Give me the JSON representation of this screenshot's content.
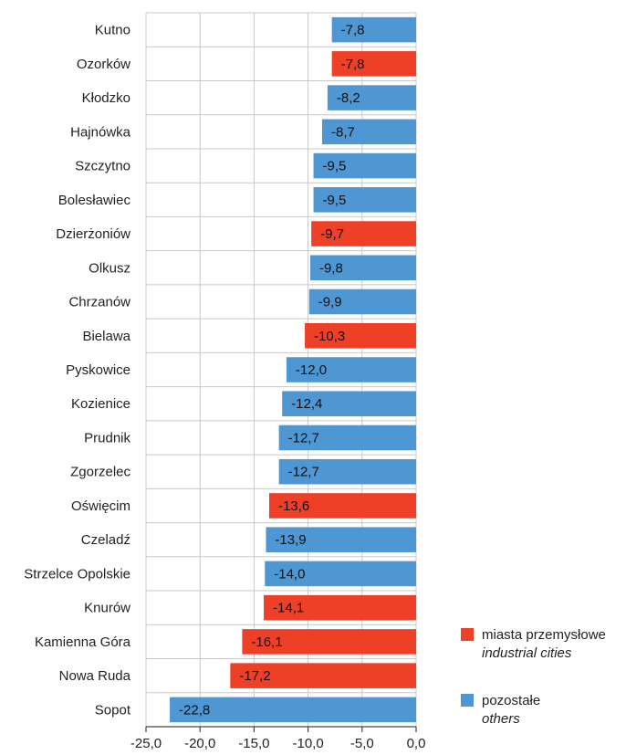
{
  "colors": {
    "industrial": "#ee4026",
    "other": "#4f97d3",
    "grid": "#c8c8c8",
    "axis": "#444444",
    "text": "#222222"
  },
  "legend": {
    "industrial": {
      "label_pl": "miasta przemysłowe",
      "label_en": "industrial cities"
    },
    "other": {
      "label_pl": "pozostałe",
      "label_en": "others"
    }
  },
  "chart_data": {
    "type": "bar",
    "orientation": "horizontal",
    "title": "",
    "xlabel": "",
    "ylabel": "",
    "xlim": [
      -25,
      0
    ],
    "x_ticks": [
      "-25,0",
      "-20,0",
      "-15,0",
      "-10,0",
      "-5,0",
      "0,0"
    ],
    "x_tick_values": [
      -25,
      -20,
      -15,
      -10,
      -5,
      0
    ],
    "grid": true,
    "legend_position": "bottom-right",
    "categories": [
      "Kutno",
      "Ozorków",
      "Kłodzko",
      "Hajnówka",
      "Szczytno",
      "Bolesławiec",
      "Dzierżoniów",
      "Olkusz",
      "Chrzanów",
      "Bielawa",
      "Pyskowice",
      "Kozienice",
      "Prudnik",
      "Zgorzelec",
      "Oświęcim",
      "Czeladź",
      "Strzelce Opolskie",
      "Knurów",
      "Kamienna Góra",
      "Nowa Ruda",
      "Sopot"
    ],
    "values": [
      -7.8,
      -7.8,
      -8.2,
      -8.7,
      -9.5,
      -9.5,
      -9.7,
      -9.8,
      -9.9,
      -10.3,
      -12.0,
      -12.4,
      -12.7,
      -12.7,
      -13.6,
      -13.9,
      -14.0,
      -14.1,
      -16.1,
      -17.2,
      -22.8
    ],
    "value_labels": [
      "-7,8",
      "-7,8",
      "-8,2",
      "-8,7",
      "-9,5",
      "-9,5",
      "-9,7",
      "-9,8",
      "-9,9",
      "-10,3",
      "-12,0",
      "-12,4",
      "-12,7",
      "-12,7",
      "-13,6",
      "-13,9",
      "-14,0",
      "-14,1",
      "-16,1",
      "-17,2",
      "-22,8"
    ],
    "groups": [
      "other",
      "industrial",
      "other",
      "other",
      "other",
      "other",
      "industrial",
      "other",
      "other",
      "industrial",
      "other",
      "other",
      "other",
      "other",
      "industrial",
      "other",
      "other",
      "industrial",
      "industrial",
      "industrial",
      "other"
    ]
  }
}
